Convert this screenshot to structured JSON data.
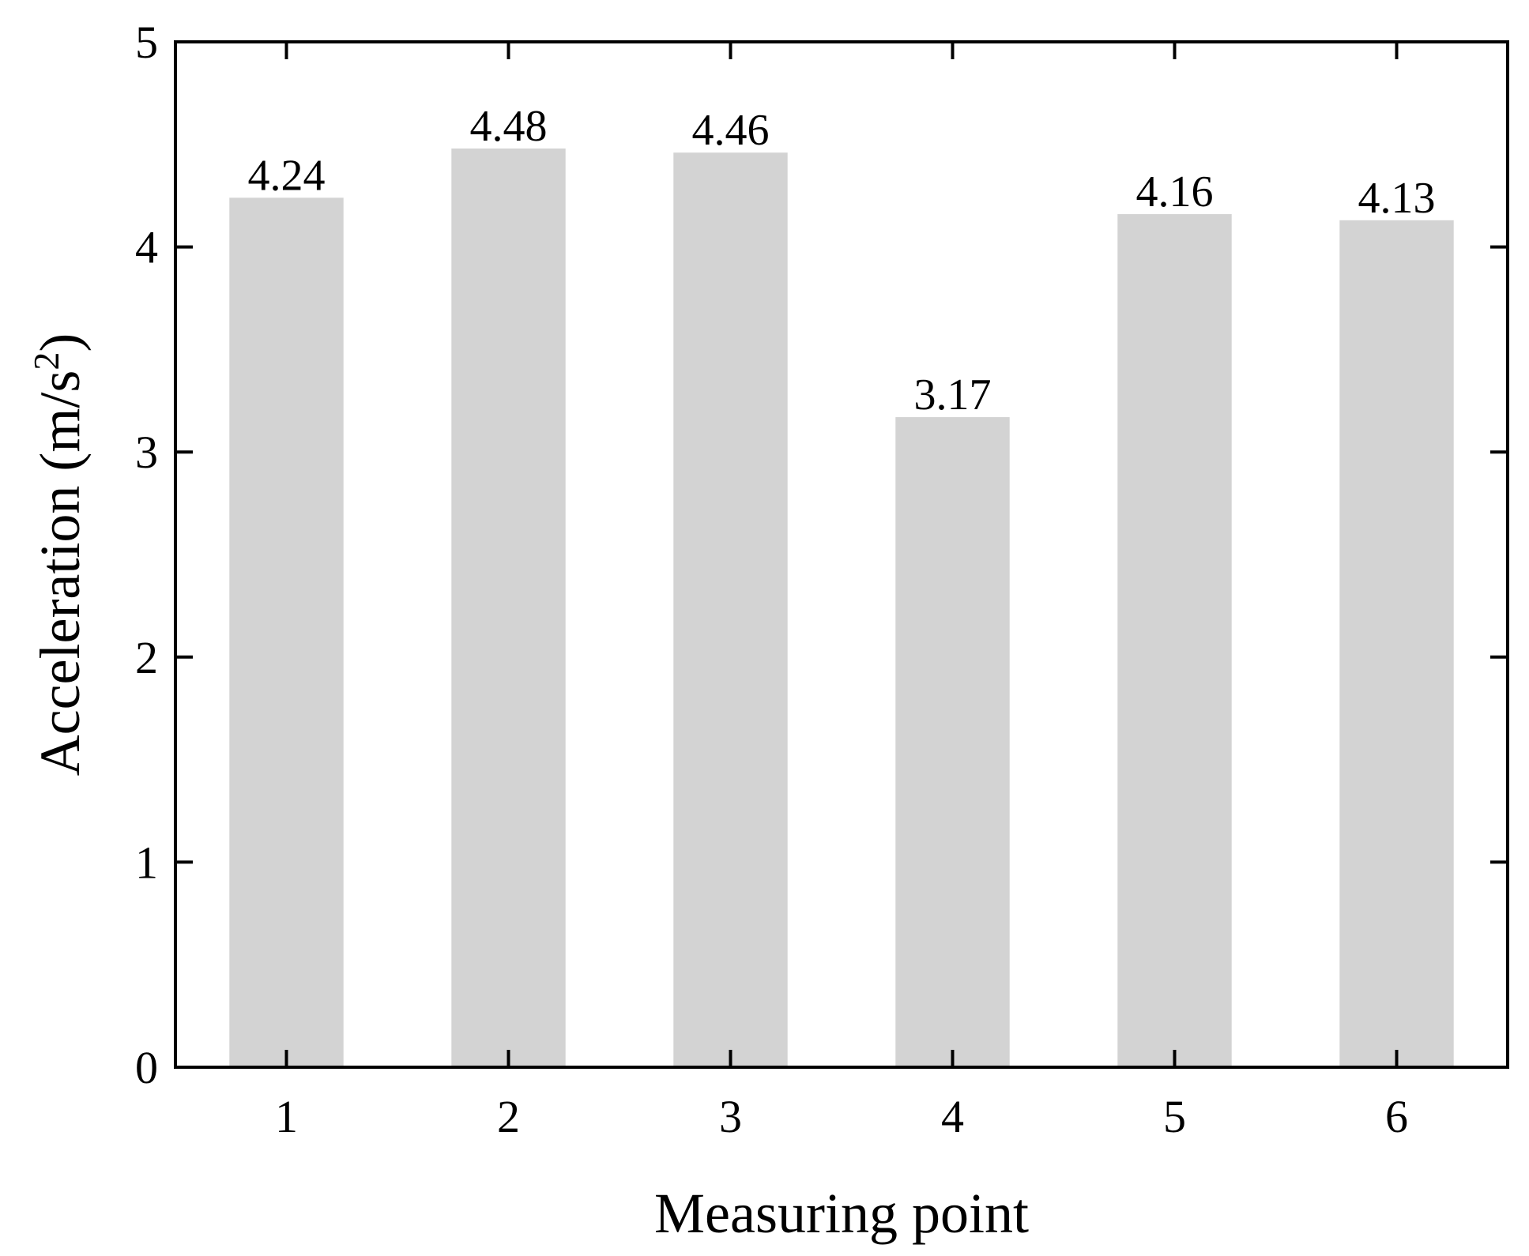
{
  "chart_data": {
    "type": "bar",
    "categories": [
      "1",
      "2",
      "3",
      "4",
      "5",
      "6"
    ],
    "values": [
      4.24,
      4.48,
      4.46,
      3.17,
      4.16,
      4.13
    ],
    "data_labels": [
      "4.24",
      "4.48",
      "4.46",
      "3.17",
      "4.16",
      "4.13"
    ],
    "xlabel": "Measuring point",
    "ylabel_main": "Acceleration (m/s",
    "ylabel_sup": "2",
    "ylabel_end": ")",
    "ylim": [
      0,
      5
    ],
    "yticks": [
      "0",
      "1",
      "2",
      "3",
      "4",
      "5"
    ],
    "grid": false,
    "colors": {
      "bar": "#d3d3d3",
      "axis": "#000000"
    }
  }
}
